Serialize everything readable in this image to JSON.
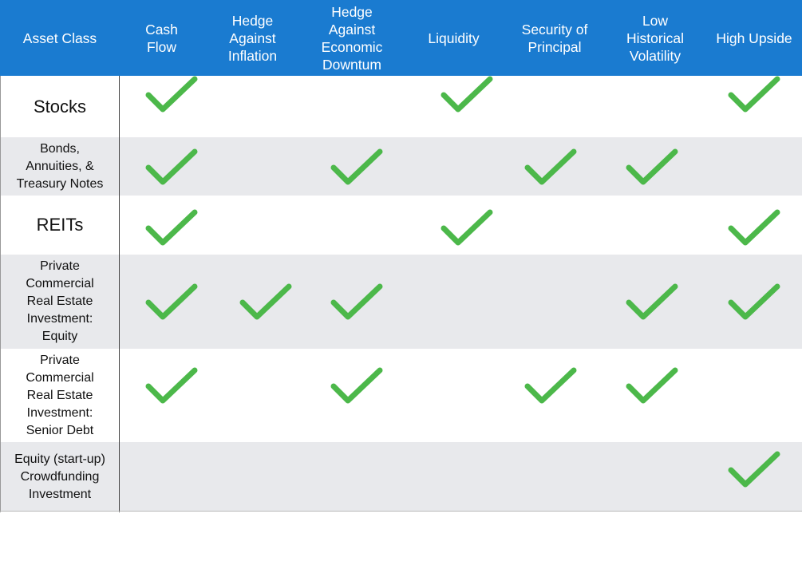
{
  "columns": [
    "Asset Class",
    "Cash\nFlow",
    "Hedge\nAgainst\nInflation",
    "Hedge\nAgainst\nEconomic\nDowntum",
    "Liquidity",
    "Security of\nPrincipal",
    "Low\nHistorical\nVolatility",
    "High Upside"
  ],
  "rows": [
    {
      "label": "Stocks",
      "checks": [
        true,
        false,
        false,
        true,
        false,
        false,
        true
      ]
    },
    {
      "label": "Bonds,\nAnnuities, &\nTreasury Notes",
      "checks": [
        true,
        false,
        true,
        false,
        true,
        true,
        false
      ]
    },
    {
      "label": "REITs",
      "checks": [
        true,
        false,
        false,
        true,
        false,
        false,
        true
      ]
    },
    {
      "label": "Private\nCommercial\nReal Estate\nInvestment:\nEquity",
      "checks": [
        true,
        true,
        true,
        false,
        false,
        true,
        true
      ]
    },
    {
      "label": "Private\nCommercial\nReal Estate\nInvestment:\nSenior Debt",
      "checks": [
        true,
        false,
        true,
        false,
        true,
        true,
        false
      ]
    },
    {
      "label": "Equity (start-up)\nCrowdfunding\nInvestment",
      "checks": [
        false,
        false,
        false,
        false,
        false,
        false,
        true
      ]
    }
  ],
  "colors": {
    "header": "#1a7bd0",
    "check": "#4cb84a",
    "shade": "#e8e9ec"
  },
  "icon": "checkmark-icon"
}
